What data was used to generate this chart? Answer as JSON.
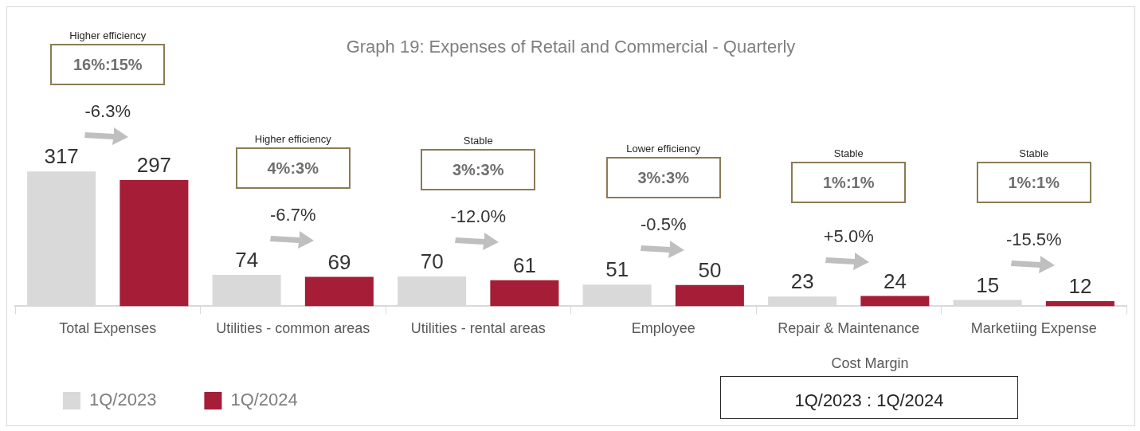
{
  "chart_data": {
    "type": "bar",
    "title": "Graph 19: Expenses of Retail and Commercial - Quarterly",
    "categories": [
      "Total Expenses",
      "Utilities - common areas",
      "Utilities - rental areas",
      "Employee",
      "Repair & Maintenance",
      "Marketiing Expense"
    ],
    "series": [
      {
        "name": "1Q/2023",
        "color": "#d9d9d9",
        "values": [
          317,
          74,
          70,
          51,
          23,
          15
        ]
      },
      {
        "name": "1Q/2024",
        "color": "#a51d36",
        "values": [
          297,
          69,
          61,
          50,
          24,
          12
        ]
      }
    ],
    "data_labels": true,
    "legend": "bottom",
    "annotations": [
      "Higher efficiency",
      "16%:15%",
      "-6.3%",
      "Higher efficiency",
      "4%:3%",
      "-6.7%",
      "Stable",
      "3%:3%",
      "-12.0%",
      "Lower efficiency",
      "3%:3%",
      "-0.5%",
      "Stable",
      "1%:1%",
      "+5.0%",
      "Stable",
      "1%:1%",
      "-15.5%",
      "Cost Margin",
      "1Q/2023 : 1Q/2024"
    ]
  }
}
